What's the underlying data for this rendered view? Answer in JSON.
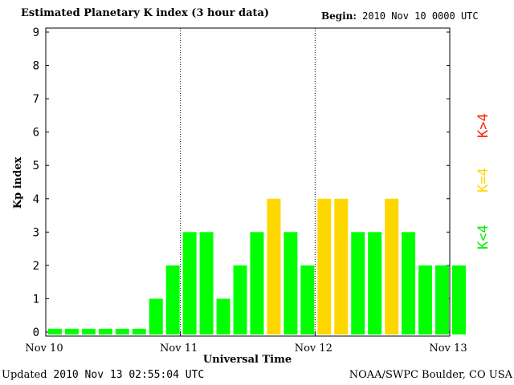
{
  "header": {
    "title": "Estimated Planetary K index (3 hour data)",
    "begin_label": "Begin:",
    "begin_value": "2010 Nov 10 0000 UTC"
  },
  "footer": {
    "updated_label": "Updated",
    "updated_value": "2010 Nov 13 02:55:04 UTC",
    "source": "NOAA/SWPC Boulder, CO USA"
  },
  "legend": {
    "below": "K<4",
    "equal": "K=4",
    "above": "K>4"
  },
  "colors": {
    "below": "#00ff00",
    "equal": "#ffd700",
    "above": "#ff2200"
  },
  "chart_data": {
    "type": "bar",
    "ylabel": "Kp index",
    "xlabel": "Universal Time",
    "ylim": [
      0,
      9
    ],
    "yticks": [
      "0",
      "1",
      "2",
      "3",
      "4",
      "5",
      "6",
      "7",
      "8",
      "9"
    ],
    "xticks": [
      "Nov 10",
      "Nov 11",
      "Nov 12",
      "Nov 13"
    ],
    "day_separators": [
      "Nov 11",
      "Nov 12"
    ],
    "interval_hours": 3,
    "values": [
      0.1,
      0.1,
      0.1,
      0.1,
      0.1,
      0.1,
      1,
      2,
      3,
      3,
      1,
      2,
      3,
      4,
      3,
      2,
      4,
      4,
      3,
      3,
      4,
      3,
      2,
      2,
      2
    ],
    "grid": false
  }
}
